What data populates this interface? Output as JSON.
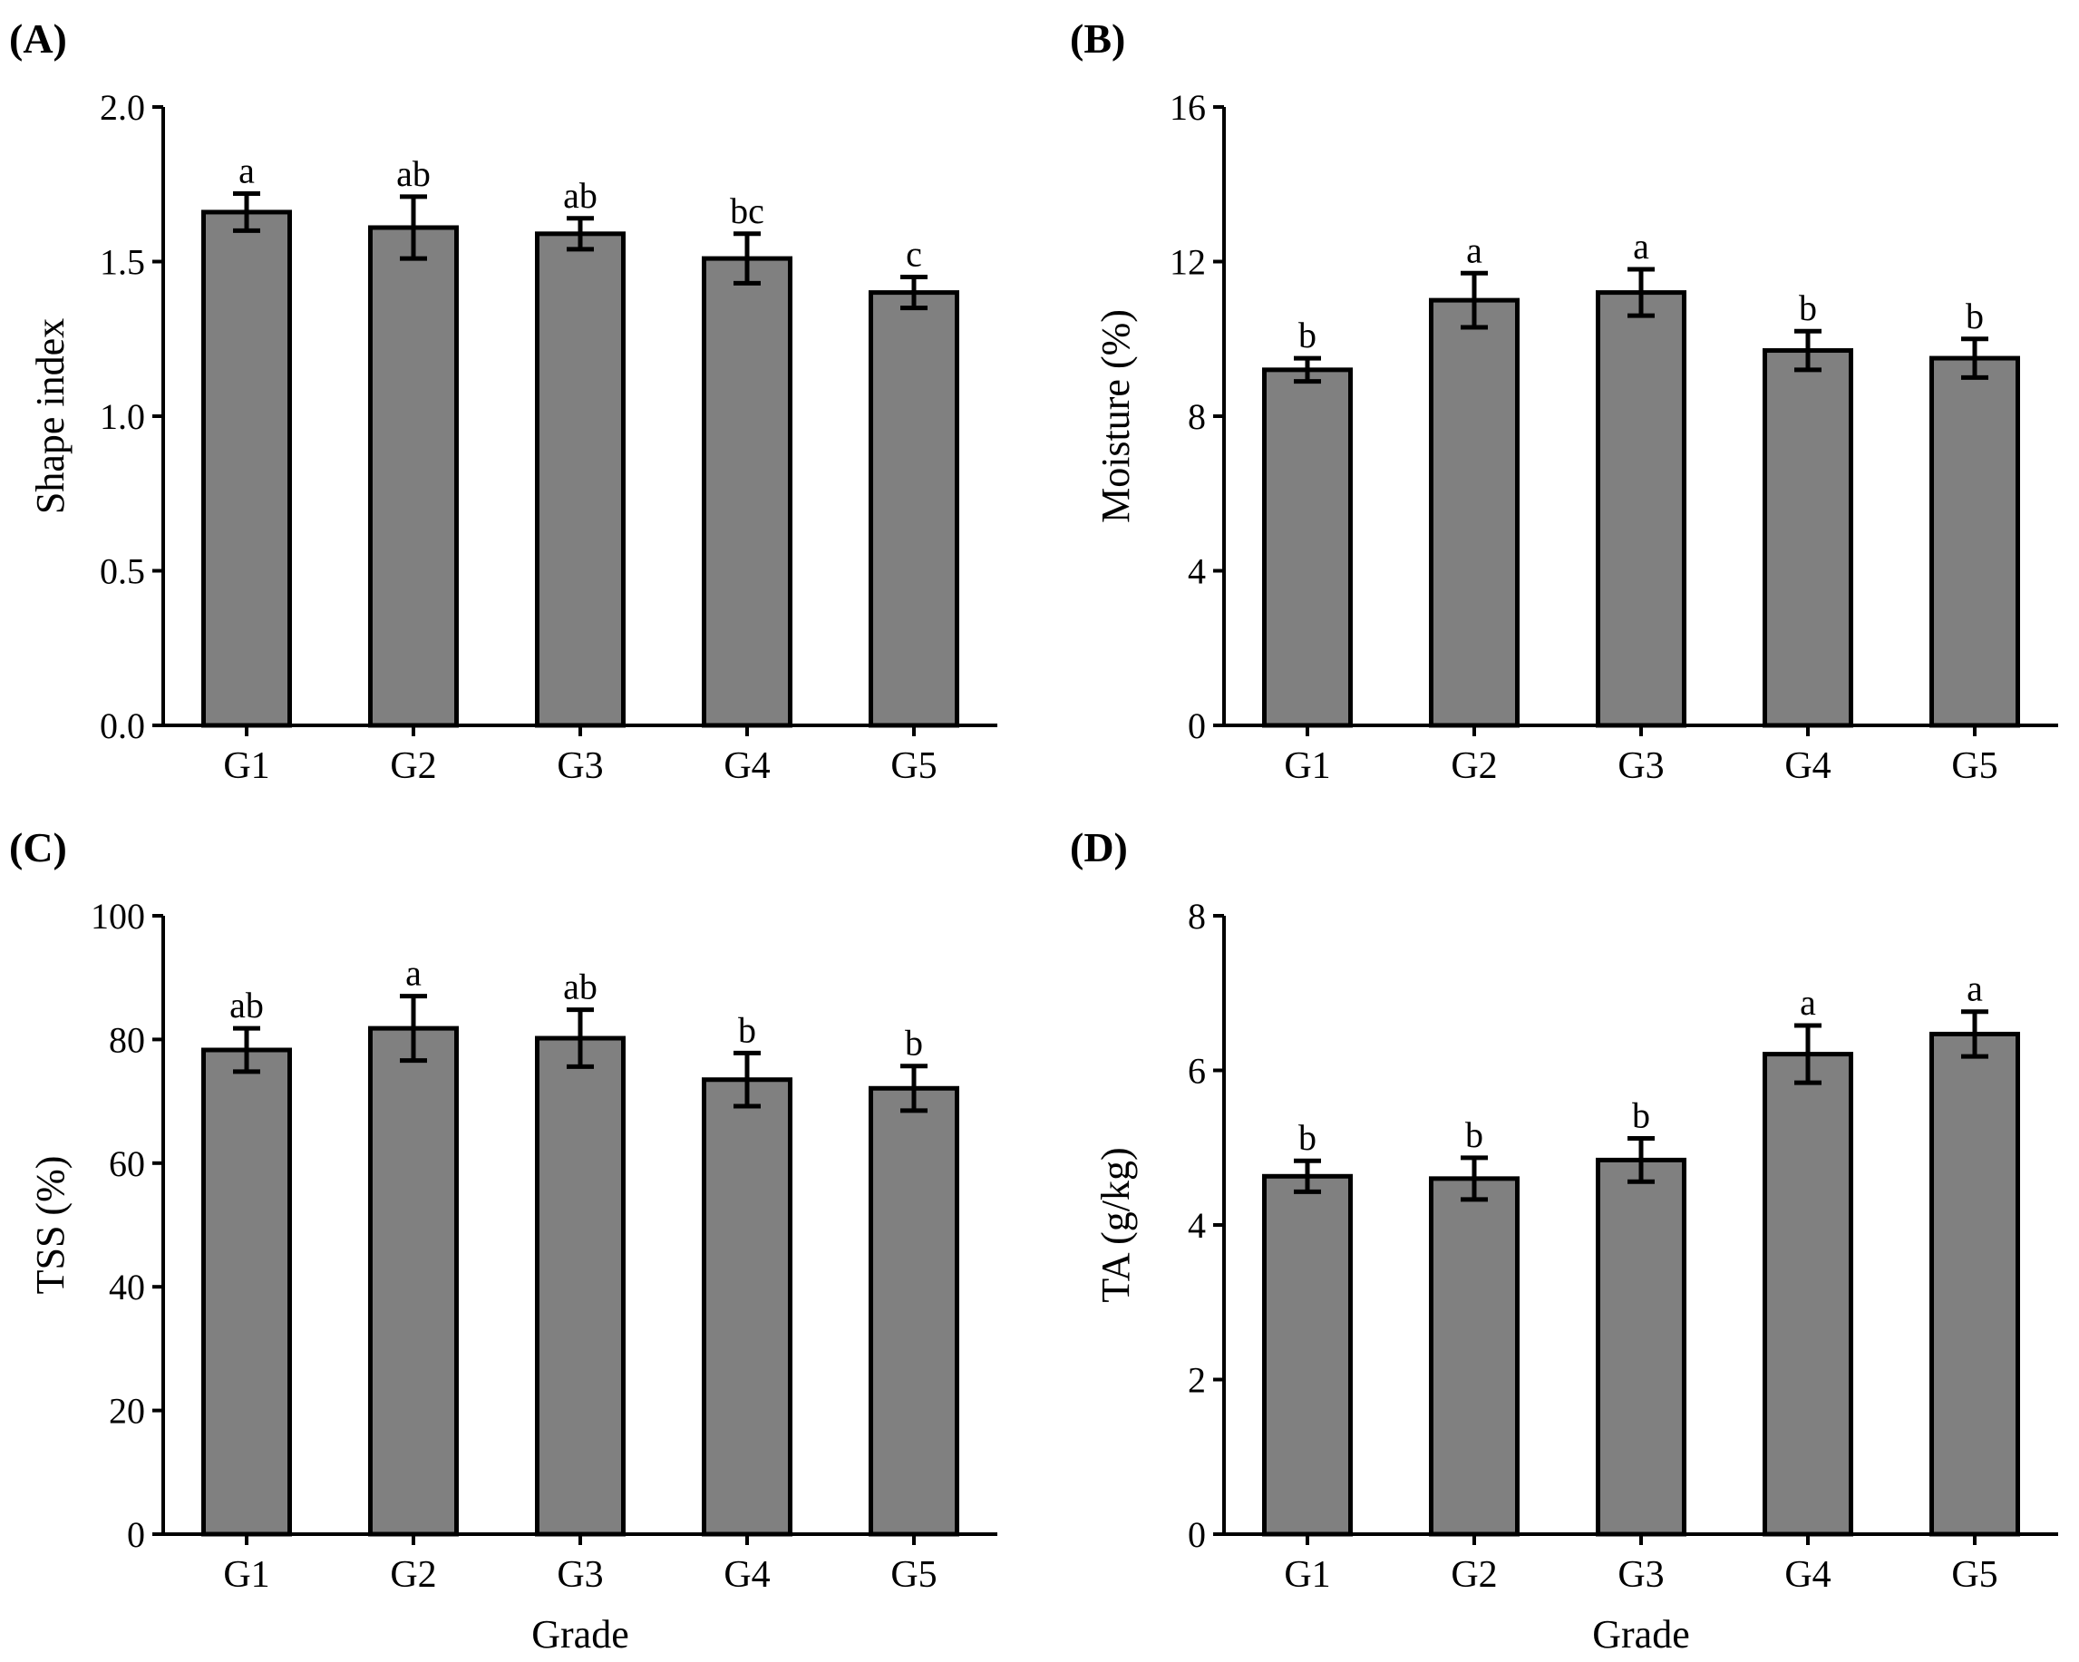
{
  "figure": {
    "bar_color": "#808080",
    "edge_color": "#000000"
  },
  "chart_data": [
    {
      "type": "bar",
      "panel_label": "(A)",
      "categories": [
        "G1",
        "G2",
        "G3",
        "G4",
        "G5"
      ],
      "values": [
        1.66,
        1.61,
        1.59,
        1.51,
        1.4
      ],
      "errors": [
        0.06,
        0.1,
        0.05,
        0.08,
        0.05
      ],
      "significance": [
        "a",
        "ab",
        "ab",
        "bc",
        "c"
      ],
      "ylabel": "Shape index",
      "xlabel": "",
      "ylim": [
        0,
        2.0
      ],
      "yticks": [
        "0.0",
        "0.5",
        "1.0",
        "1.5",
        "2.0"
      ]
    },
    {
      "type": "bar",
      "panel_label": "(B)",
      "categories": [
        "G1",
        "G2",
        "G3",
        "G4",
        "G5"
      ],
      "values": [
        9.2,
        11.0,
        11.2,
        9.7,
        9.5
      ],
      "errors": [
        0.3,
        0.7,
        0.6,
        0.5,
        0.5
      ],
      "significance": [
        "b",
        "a",
        "a",
        "b",
        "b"
      ],
      "ylabel": "Moisture (%)",
      "xlabel": "",
      "ylim": [
        0,
        16
      ],
      "yticks": [
        "0",
        "4",
        "8",
        "12",
        "16"
      ]
    },
    {
      "type": "bar",
      "panel_label": "(C)",
      "categories": [
        "G1",
        "G2",
        "G3",
        "G4",
        "G5"
      ],
      "values": [
        78.3,
        81.8,
        80.2,
        73.5,
        72.1
      ],
      "errors": [
        3.5,
        5.2,
        4.6,
        4.3,
        3.6
      ],
      "significance": [
        "ab",
        "a",
        "ab",
        "b",
        "b"
      ],
      "ylabel": "TSS (%)",
      "xlabel": "Grade",
      "ylim": [
        0,
        100
      ],
      "yticks": [
        "0",
        "20",
        "40",
        "60",
        "80",
        "100"
      ]
    },
    {
      "type": "bar",
      "panel_label": "(D)",
      "categories": [
        "G1",
        "G2",
        "G3",
        "G4",
        "G5"
      ],
      "values": [
        4.63,
        4.6,
        4.84,
        6.21,
        6.47
      ],
      "errors": [
        0.2,
        0.27,
        0.28,
        0.37,
        0.29
      ],
      "significance": [
        "b",
        "b",
        "b",
        "a",
        "a"
      ],
      "ylabel": "TA (g/kg)",
      "xlabel": "Grade",
      "ylim": [
        0,
        8
      ],
      "yticks": [
        "0",
        "2",
        "4",
        "6",
        "8"
      ]
    }
  ]
}
